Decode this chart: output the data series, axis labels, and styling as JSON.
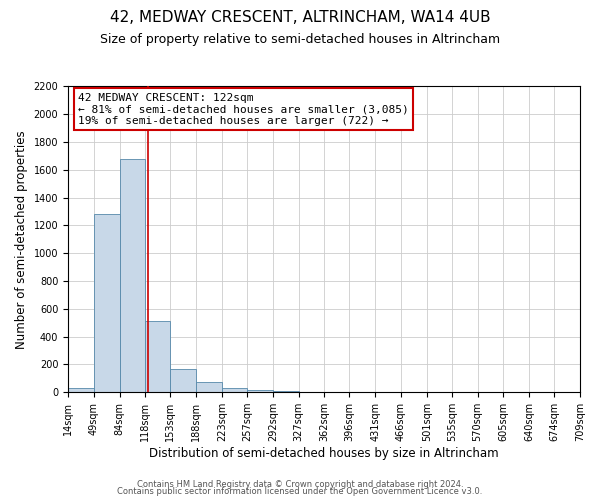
{
  "title": "42, MEDWAY CRESCENT, ALTRINCHAM, WA14 4UB",
  "subtitle": "Size of property relative to semi-detached houses in Altrincham",
  "xlabel": "Distribution of semi-detached houses by size in Altrincham",
  "ylabel": "Number of semi-detached properties",
  "bar_color": "#c8d8e8",
  "bar_edge_color": "#5588aa",
  "annotation_box_color": "#ffffff",
  "annotation_box_edge_color": "#cc0000",
  "property_line_color": "#cc0000",
  "footer_line1": "Contains HM Land Registry data © Crown copyright and database right 2024.",
  "footer_line2": "Contains public sector information licensed under the Open Government Licence v3.0.",
  "annotation_title": "42 MEDWAY CRESCENT: 122sqm",
  "annotation_line1": "← 81% of semi-detached houses are smaller (3,085)",
  "annotation_line2": "19% of semi-detached houses are larger (722) →",
  "property_size": 122,
  "bin_edges": [
    14,
    49,
    84,
    118,
    153,
    188,
    223,
    257,
    292,
    327,
    362,
    396,
    431,
    466,
    501,
    535,
    570,
    605,
    640,
    674,
    709
  ],
  "bin_counts": [
    30,
    1280,
    1680,
    510,
    165,
    75,
    30,
    15,
    10,
    0,
    5,
    0,
    0,
    0,
    0,
    0,
    0,
    0,
    0,
    0
  ],
  "ylim": [
    0,
    2200
  ],
  "yticks": [
    0,
    200,
    400,
    600,
    800,
    1000,
    1200,
    1400,
    1600,
    1800,
    2000,
    2200
  ],
  "background_color": "#ffffff",
  "grid_color": "#cccccc",
  "title_fontsize": 11,
  "subtitle_fontsize": 9,
  "axis_label_fontsize": 8.5,
  "tick_fontsize": 7,
  "footer_fontsize": 6,
  "annotation_fontsize": 8
}
